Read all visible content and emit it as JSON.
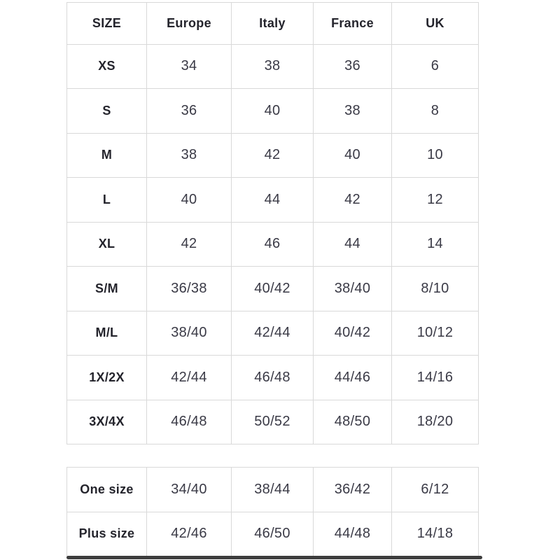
{
  "colors": {
    "background": "#ffffff",
    "border": "#d9d9d9",
    "header_text": "#24242c",
    "label_text": "#24242c",
    "value_text": "#3a3a46",
    "scrollbar": "#3d3d3d"
  },
  "size_chart": {
    "columns": [
      "SIZE",
      "Europe",
      "Italy",
      "France",
      "UK"
    ],
    "rows": [
      {
        "size": "XS",
        "values": [
          "34",
          "38",
          "36",
          "6"
        ]
      },
      {
        "size": "S",
        "values": [
          "36",
          "40",
          "38",
          "8"
        ]
      },
      {
        "size": "M",
        "values": [
          "38",
          "42",
          "40",
          "10"
        ]
      },
      {
        "size": "L",
        "values": [
          "40",
          "44",
          "42",
          "12"
        ]
      },
      {
        "size": "XL",
        "values": [
          "42",
          "46",
          "44",
          "14"
        ]
      },
      {
        "size": "S/M",
        "values": [
          "36/38",
          "40/42",
          "38/40",
          "8/10"
        ]
      },
      {
        "size": "M/L",
        "values": [
          "38/40",
          "42/44",
          "40/42",
          "10/12"
        ]
      },
      {
        "size": "1X/2X",
        "values": [
          "42/44",
          "46/48",
          "44/46",
          "14/16"
        ]
      },
      {
        "size": "3X/4X",
        "values": [
          "46/48",
          "50/52",
          "48/50",
          "18/20"
        ]
      }
    ]
  },
  "special_sizes": {
    "rows": [
      {
        "size": "One size",
        "values": [
          "34/40",
          "38/44",
          "36/42",
          "6/12"
        ]
      },
      {
        "size": "Plus size",
        "values": [
          "42/46",
          "46/50",
          "44/48",
          "14/18"
        ]
      }
    ]
  }
}
